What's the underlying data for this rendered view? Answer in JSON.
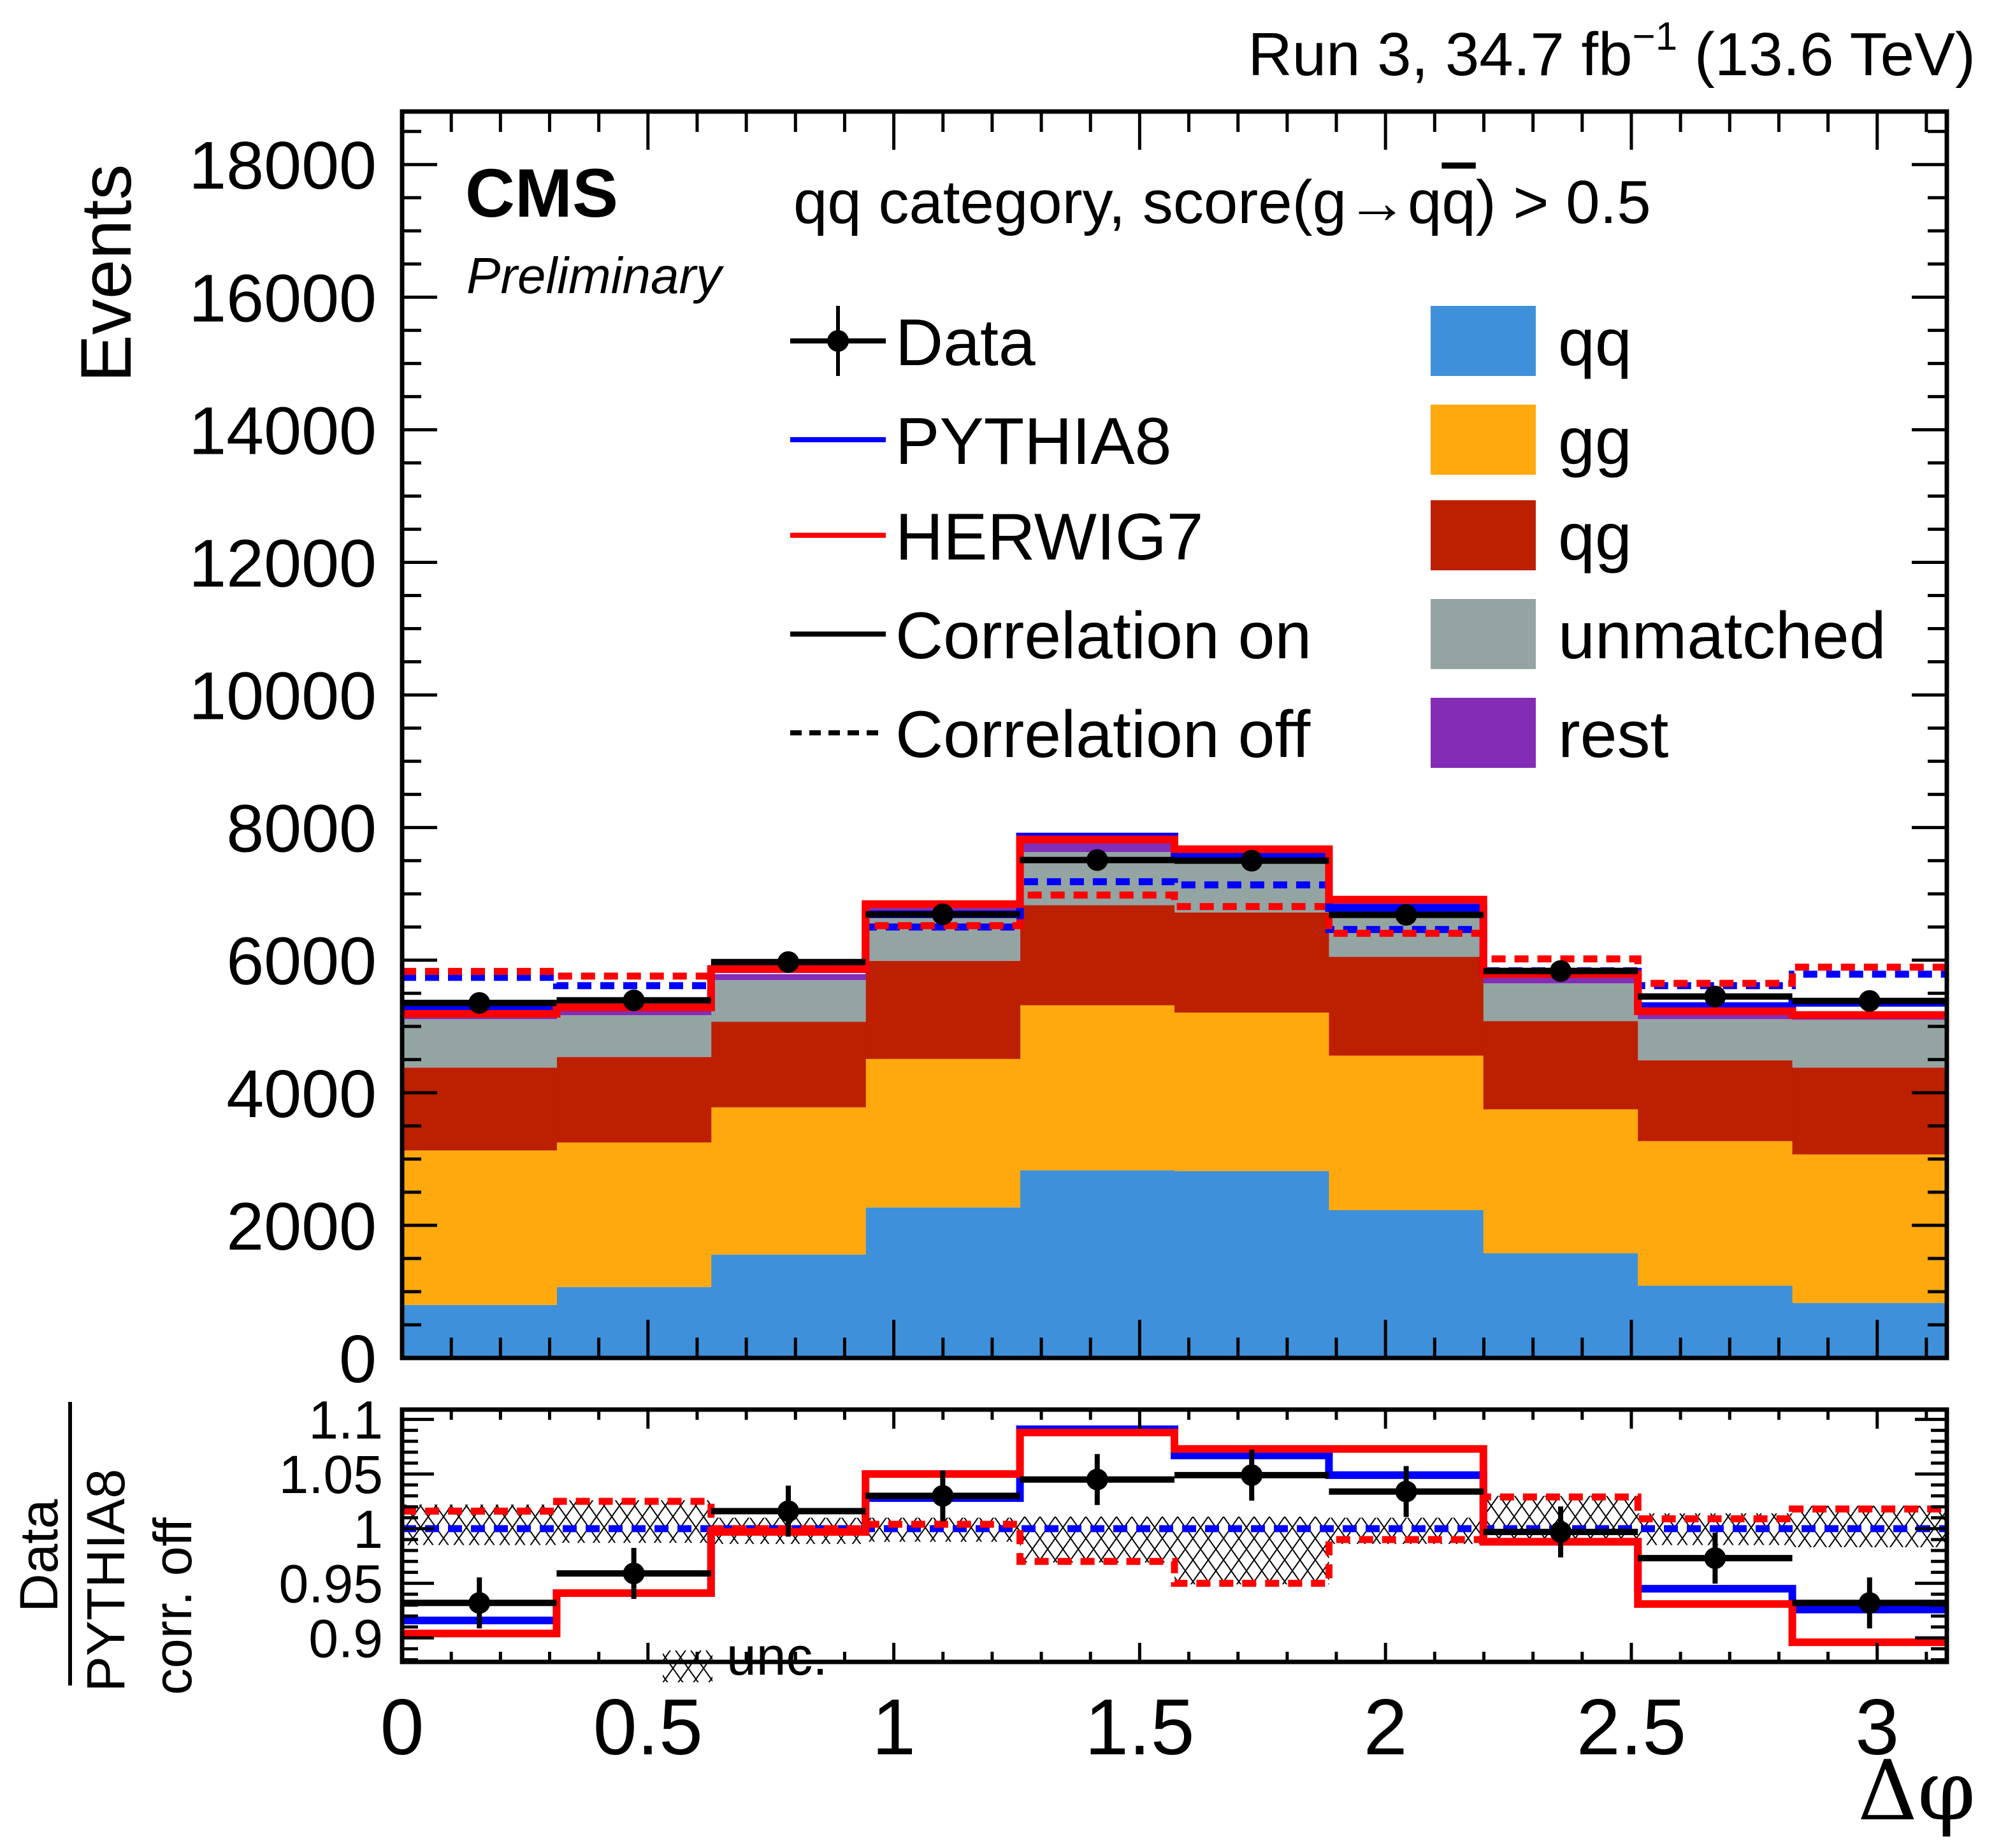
{
  "header": {
    "lumi_label": "Run 3, 34.7 fb",
    "lumi_superscript": "−1",
    "energy_label": "(13.6 TeV)",
    "experiment": "CMS",
    "status": "Preliminary",
    "category_label": "qq category, score(g→q",
    "category_qbar": "q",
    "category_suffix": ") > 0.5"
  },
  "legend": {
    "left": [
      {
        "label": "Data",
        "style": "marker",
        "color": "#000000"
      },
      {
        "label": "PYTHIA8",
        "style": "line",
        "color": "#0000ff"
      },
      {
        "label": "HERWIG7",
        "style": "line",
        "color": "#ff0000"
      },
      {
        "label": "Correlation on",
        "style": "line",
        "color": "#000000"
      },
      {
        "label": "Correlation off",
        "style": "dashed",
        "color": "#000000"
      }
    ],
    "right": [
      {
        "label": "qq",
        "color": "#3f90da"
      },
      {
        "label": "gg",
        "color": "#ffa90e"
      },
      {
        "label": "qg",
        "color": "#bd1f01"
      },
      {
        "label": "unmatched",
        "color": "#94a4a2"
      },
      {
        "label": "rest",
        "color": "#832db6"
      }
    ],
    "unc_label": "unc."
  },
  "chart_data": [
    {
      "type": "bar",
      "subtype": "stacked-histogram",
      "title": "qq category, score(g→q̅q) > 0.5",
      "xlabel": "Δφ",
      "ylabel": "Events",
      "xlim": [
        0,
        3.1416
      ],
      "ylim": [
        0,
        18800
      ],
      "bin_edges": [
        0,
        0.3142,
        0.6283,
        0.9425,
        1.2566,
        1.5708,
        1.885,
        2.1991,
        2.5133,
        2.8274,
        3.1416
      ],
      "yticks": [
        "0",
        "2000",
        "4000",
        "6000",
        "8000",
        "10000",
        "12000",
        "14000",
        "16000",
        "18000"
      ],
      "ytick_values": [
        0,
        2000,
        4000,
        6000,
        8000,
        10000,
        12000,
        14000,
        16000,
        18000
      ],
      "stack": [
        {
          "name": "qq",
          "color": "#3f90da",
          "values": [
            800,
            1070,
            1560,
            2270,
            2830,
            2820,
            2230,
            1580,
            1090,
            830
          ]
        },
        {
          "name": "gg",
          "color": "#ffa90e",
          "values": [
            2330,
            2180,
            2220,
            2240,
            2490,
            2390,
            2330,
            2170,
            2180,
            2240
          ]
        },
        {
          "name": "qg",
          "color": "#bd1f01",
          "values": [
            1250,
            1290,
            1290,
            1480,
            1510,
            1510,
            1490,
            1330,
            1220,
            1310
          ]
        },
        {
          "name": "unmatched",
          "color": "#94a4a2",
          "values": [
            730,
            630,
            630,
            650,
            800,
            740,
            680,
            570,
            620,
            720
          ]
        },
        {
          "name": "rest",
          "color": "#832db6",
          "values": [
            70,
            60,
            90,
            150,
            140,
            120,
            130,
            90,
            70,
            60
          ]
        }
      ],
      "series": [
        {
          "name": "Data",
          "style": "points",
          "color": "#000000",
          "values": [
            5355,
            5394,
            5971,
            6692,
            7510,
            7500,
            6683,
            5837,
            5452,
            5385
          ]
        },
        {
          "name": "PYTHIA8 correlation on",
          "style": "step",
          "color": "#0000ff",
          "values": [
            5270,
            5288,
            5865,
            6692,
            7865,
            7606,
            6788,
            5827,
            5308,
            5356
          ]
        },
        {
          "name": "HERWIG7 correlation on",
          "style": "step",
          "color": "#ff0000",
          "values": [
            5190,
            5288,
            5865,
            6846,
            7820,
            7673,
            6913,
            5790,
            5230,
            5173
          ]
        },
        {
          "name": "PYTHIA8 correlation off",
          "style": "dashed-step",
          "color": "#0000ff",
          "values": [
            5740,
            5615,
            5870,
            6500,
            7183,
            7135,
            6462,
            5840,
            5615,
            5788
          ]
        },
        {
          "name": "HERWIG7 correlation off",
          "style": "dashed-step",
          "color": "#ff0000",
          "values": [
            5830,
            5760,
            5870,
            6520,
            6981,
            6808,
            6405,
            6019,
            5650,
            5894
          ]
        }
      ]
    },
    {
      "type": "line",
      "subtype": "ratio-panel",
      "xlabel": "Δφ",
      "ylabel_numerator": "Data",
      "ylabel_denominator": "PYTHIA8",
      "ylabel_sub": "corr. off",
      "xlim": [
        0,
        3.1416
      ],
      "ylim": [
        0.878,
        1.109
      ],
      "xticks": [
        "0",
        "0.5",
        "1",
        "1.5",
        "2",
        "2.5",
        "3"
      ],
      "xtick_values": [
        0,
        0.5,
        1,
        1.5,
        2,
        2.5,
        3
      ],
      "yticks": [
        "0.9",
        "0.95",
        "1",
        "1.05",
        "1.1"
      ],
      "ytick_values": [
        0.9,
        0.95,
        1.0,
        1.05,
        1.1
      ],
      "bin_edges": [
        0,
        0.3142,
        0.6283,
        0.9425,
        1.2566,
        1.5708,
        1.885,
        2.1991,
        2.5133,
        2.8274,
        3.1416
      ],
      "unc_band": {
        "name": "unc.",
        "low": [
          0.985,
          0.987,
          0.986,
          0.988,
          0.969,
          0.949,
          0.986,
          0.986,
          0.985,
          0.983
        ],
        "high": [
          1.022,
          1.026,
          1.01,
          1.01,
          1.011,
          1.011,
          1.01,
          1.03,
          1.014,
          1.021
        ]
      },
      "series": [
        {
          "name": "Data",
          "style": "points",
          "color": "#000000",
          "values": [
            0.932,
            0.959,
            1.016,
            1.03,
            1.045,
            1.049,
            1.034,
            0.997,
            0.973,
            0.932
          ]
        },
        {
          "name": "PYTHIA8 correlation on",
          "style": "step",
          "color": "#0000ff",
          "values": [
            0.916,
            0.941,
            0.997,
            1.028,
            1.091,
            1.067,
            1.049,
            0.988,
            0.945,
            0.926
          ]
        },
        {
          "name": "HERWIG7 correlation on",
          "style": "step",
          "color": "#ff0000",
          "values": [
            0.904,
            0.941,
            0.997,
            1.05,
            1.088,
            1.073,
            1.073,
            0.988,
            0.931,
            0.896
          ]
        },
        {
          "name": "PYTHIA8 correlation off",
          "style": "dashed-step",
          "color": "#0000ff",
          "values": [
            1.0,
            1.0,
            1.0,
            1.0,
            1.0,
            1.0,
            1.0,
            1.0,
            1.0,
            1.0
          ]
        },
        {
          "name": "HERWIG7 correlation off",
          "style": "dashed-step",
          "color": "#ff0000",
          "values": [
            1.016,
            1.025,
            1.0,
            1.004,
            0.97,
            0.95,
            0.99,
            1.029,
            1.009,
            1.018
          ]
        }
      ]
    }
  ]
}
